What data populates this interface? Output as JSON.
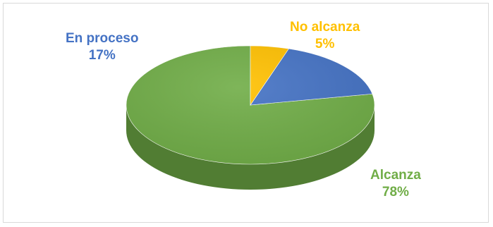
{
  "chart_data": {
    "type": "pie",
    "title": "",
    "three_d": true,
    "slices": [
      {
        "name": "Alcanza",
        "value": 78,
        "label": "78%",
        "color": "#70AD47"
      },
      {
        "name": "En proceso",
        "value": 17,
        "label": "17%",
        "color": "#4472C4"
      },
      {
        "name": "No alcanza",
        "value": 5,
        "label": "5%",
        "color": "#FFC000"
      }
    ],
    "legend": "none"
  }
}
